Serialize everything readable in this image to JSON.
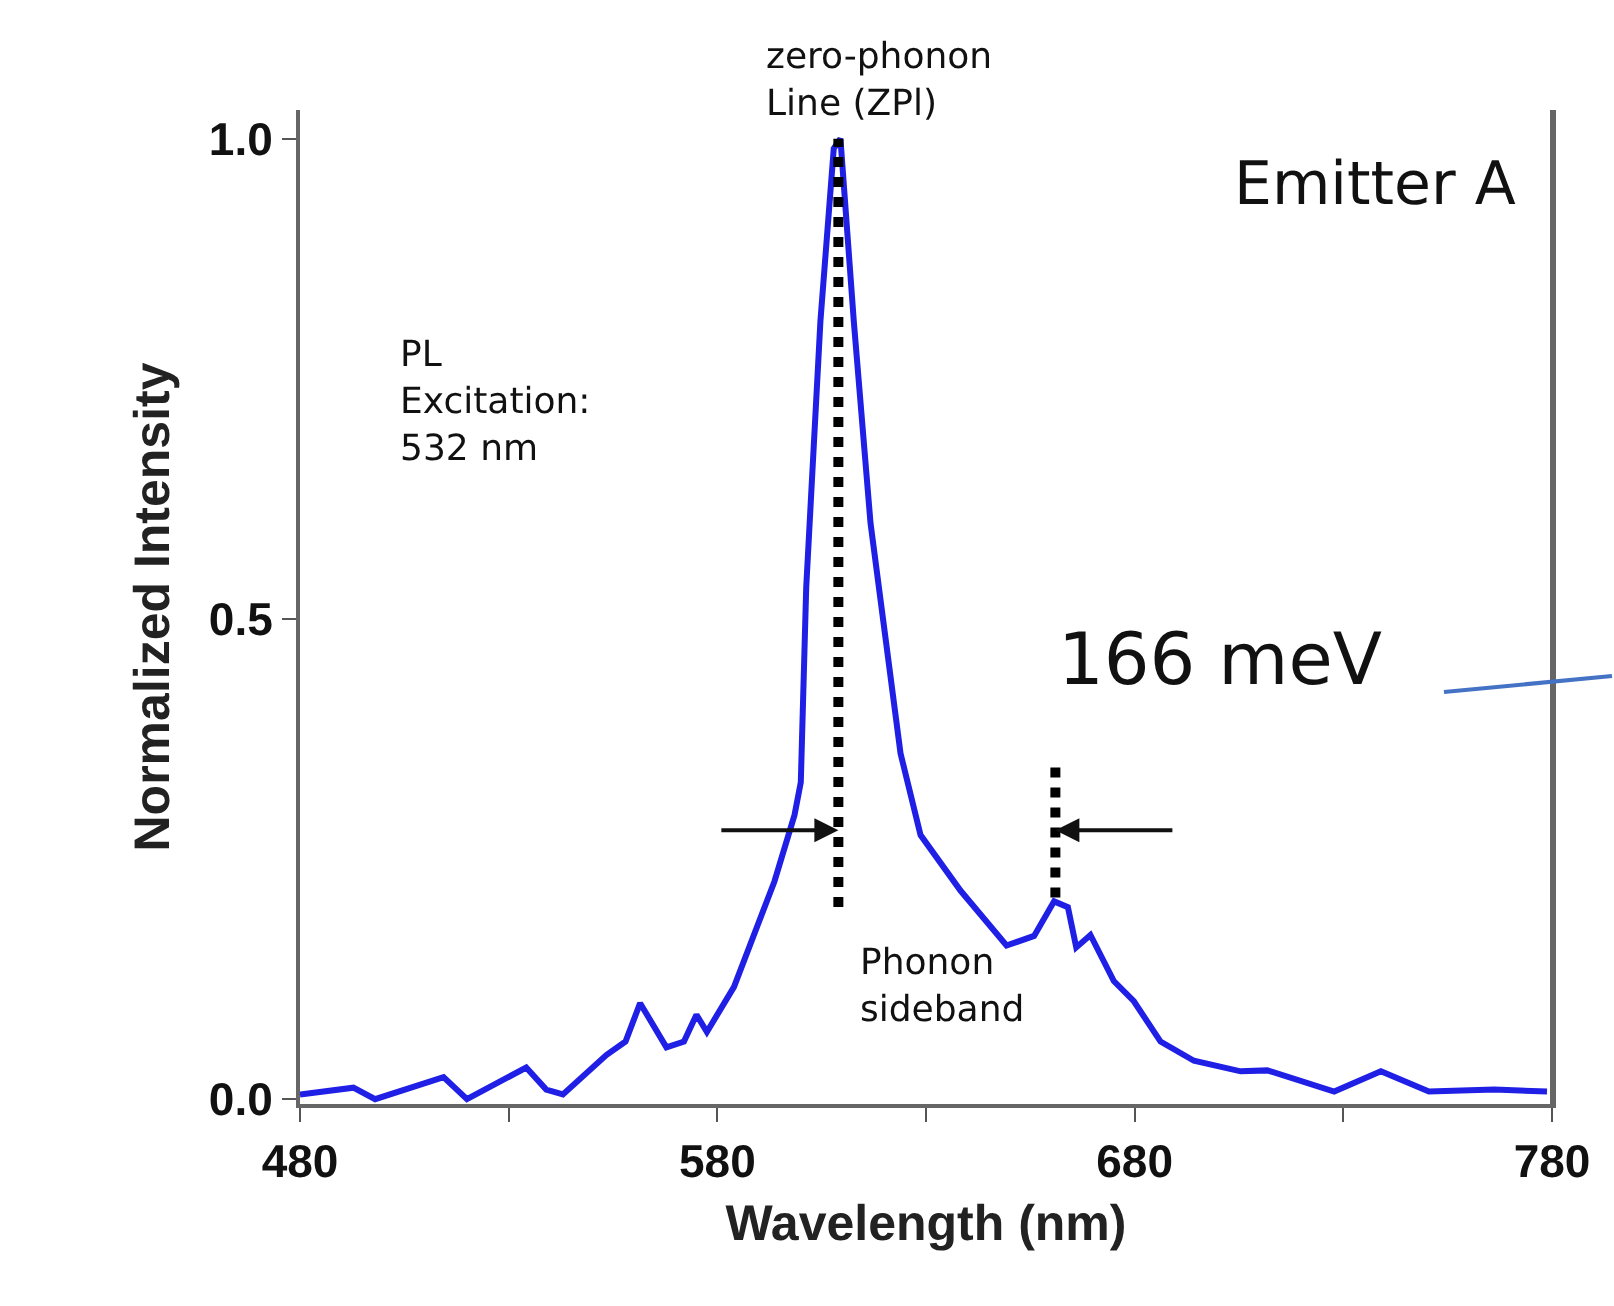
{
  "chart_data": {
    "type": "line",
    "xlabel": "Wavelength (nm)",
    "ylabel": "Normalized Intensity",
    "xlim": [
      480,
      780
    ],
    "ylim": [
      -0.005,
      1.03
    ],
    "xticks": [
      480,
      {
        "value": 530,
        "label": null
      },
      580,
      {
        "value": 630,
        "label": null
      },
      680,
      {
        "value": 730,
        "label": null
      },
      780
    ],
    "yticks": [
      {
        "value": 0,
        "label": "0.0"
      },
      {
        "value": 0.5,
        "label": "0.5"
      },
      {
        "value": 1,
        "label": "1.0"
      }
    ],
    "grid": false,
    "marker": "none",
    "annotations": [
      "zero-phonon\nLine (ZPl)",
      "PL\nExcitation:\n532 nm",
      "Emitter A",
      "166 meV",
      "Phonon\nsideband"
    ],
    "series": [
      {
        "color": "#1f1fe6",
        "line_style": "solid",
        "x": [
          480,
          492.8,
          498,
          514.4,
          520,
          534.2,
          539,
          543,
          553.4,
          558,
          561.5,
          567.8,
          572,
          575,
          577.5,
          584,
          593.7,
          598.5,
          600,
          601.3,
          604.7,
          607.9,
          609.5,
          612.7,
          616.7,
          623.9,
          628.7,
          638.3,
          649.3,
          655.9,
          660.7,
          664,
          666,
          669.4,
          675,
          679.8,
          686.2,
          694.2,
          705.4,
          711.8,
          727.8,
          739,
          750.5,
          766.2,
          778.8
        ],
        "values": [
          0.005,
          0.012,
          0,
          0.023,
          0,
          0.033,
          0.01,
          0.005,
          0.046,
          0.06,
          0.1,
          0.054,
          0.06,
          0.088,
          0.07,
          0.117,
          0.227,
          0.296,
          0.33,
          0.533,
          0.81,
          0.99,
          1.0,
          0.81,
          0.6,
          0.36,
          0.275,
          0.217,
          0.16,
          0.17,
          0.206,
          0.2,
          0.158,
          0.171,
          0.123,
          0.102,
          0.06,
          0.04,
          0.029,
          0.03,
          0.008,
          0.029,
          0.008,
          0.01,
          0.008
        ]
      },
      {
        "color": "#000000",
        "line_style": "dotted",
        "x": [
          609,
          609
        ],
        "values": [
          0.2,
          1.0
        ]
      },
      {
        "color": "#000000",
        "line_style": "dotted",
        "x": [
          661,
          661
        ],
        "values": [
          0.21,
          0.35
        ]
      }
    ]
  }
}
